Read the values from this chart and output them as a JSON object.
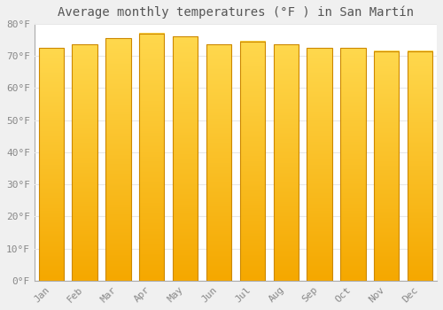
{
  "title": "Average monthly temperatures (°F ) in San Martín",
  "months": [
    "Jan",
    "Feb",
    "Mar",
    "Apr",
    "May",
    "Jun",
    "Jul",
    "Aug",
    "Sep",
    "Oct",
    "Nov",
    "Dec"
  ],
  "values": [
    72.5,
    73.5,
    75.5,
    77.0,
    76.0,
    73.5,
    74.5,
    73.5,
    72.5,
    72.5,
    71.5,
    71.5
  ],
  "bar_color_bottom": "#F5A800",
  "bar_color_top": "#FFD84D",
  "bar_edge_color": "#CC8800",
  "ylim": [
    0,
    80
  ],
  "yticks": [
    0,
    10,
    20,
    30,
    40,
    50,
    60,
    70,
    80
  ],
  "ytick_labels": [
    "0°F",
    "10°F",
    "20°F",
    "30°F",
    "40°F",
    "50°F",
    "60°F",
    "70°F",
    "80°F"
  ],
  "background_color": "#f0f0f0",
  "plot_background_color": "#ffffff",
  "grid_color": "#e8e8e8",
  "title_fontsize": 10,
  "tick_fontsize": 8,
  "tick_color": "#888888",
  "title_color": "#555555",
  "bar_width": 0.75
}
